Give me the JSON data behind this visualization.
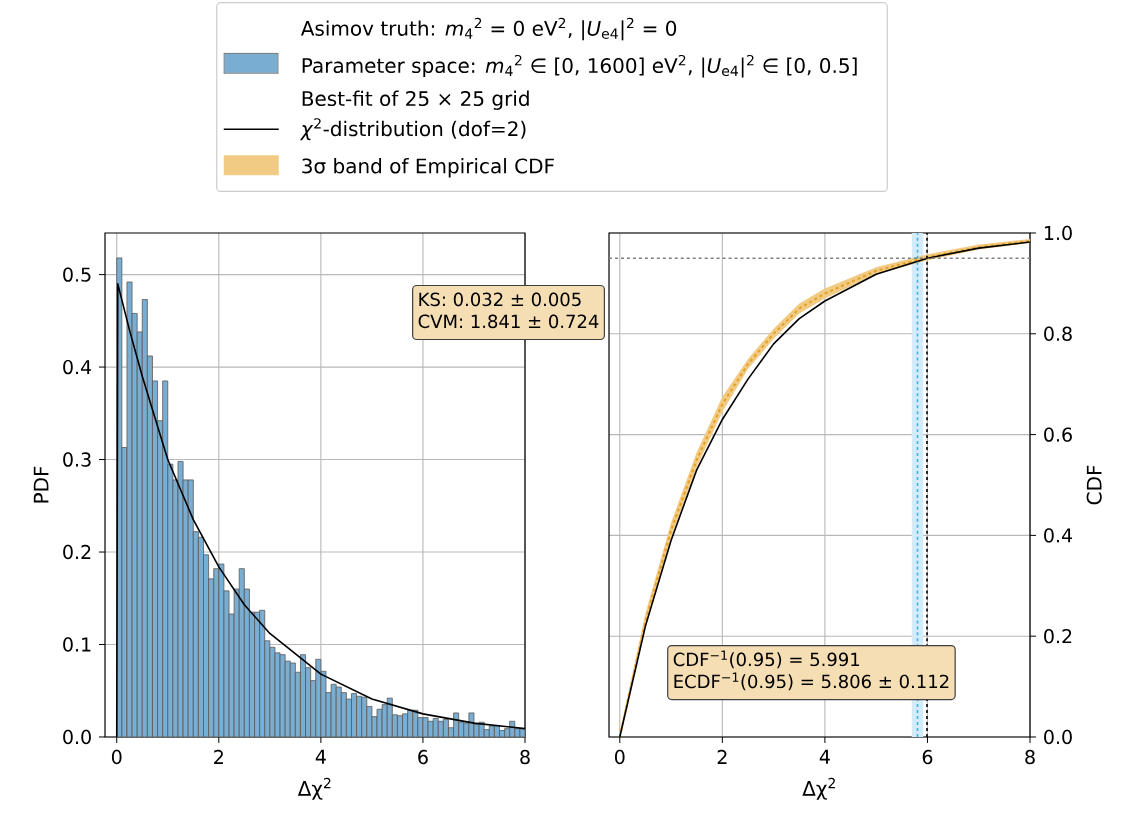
{
  "chart_data": [
    {
      "type": "histogram",
      "xlabel": "Δχ$^{2}$",
      "ylabel": "PDF",
      "legend_title": "Asimov truth: *m*$_{4}$$^{2}$ = 0 eV$^{2}$, |*U*$_{e4}$|$^{2}$ = 0",
      "legend": "top",
      "grid": true,
      "xlim": [
        -0.23,
        8
      ],
      "ylim": [
        0,
        0.545
      ],
      "xticks": [
        0,
        2,
        4,
        6,
        8
      ],
      "yticks": [
        {
          "value": 0,
          "label": "0.0"
        },
        0.1,
        0.2,
        0.3,
        0.4,
        0.5
      ],
      "bins": [
        0,
        0.1,
        0.2,
        0.3,
        0.4,
        0.5,
        0.6,
        0.7,
        0.8,
        0.9,
        1.0,
        1.1,
        1.2,
        1.3,
        1.4,
        1.5,
        1.6,
        1.7,
        1.8,
        1.9,
        2.0,
        2.1,
        2.2,
        2.3,
        2.4,
        2.5,
        2.6,
        2.7,
        2.8,
        2.9,
        3.0,
        3.1,
        3.2,
        3.3,
        3.4,
        3.5,
        3.6,
        3.7,
        3.8,
        3.9,
        4.0,
        4.1,
        4.2,
        4.3,
        4.4,
        4.5,
        4.6,
        4.7,
        4.8,
        4.9,
        5.0,
        5.1,
        5.2,
        5.3,
        5.4,
        5.5,
        5.6,
        5.7,
        5.8,
        5.9,
        6.0,
        6.1,
        6.2,
        6.3,
        6.4,
        6.5,
        6.6,
        6.7,
        6.8,
        6.9,
        7.0,
        7.1,
        7.2,
        7.3,
        7.4,
        7.5,
        7.6,
        7.7,
        7.8,
        7.9,
        8.0
      ],
      "series": [
        {
          "name": "Parameter space: *m*$_{4}$$^{2}$ ∈ [0, 1600] eV$^{2}$, |*U*$_{e4}$|$^{2}$ ∈ [0, 0.5] Best-fit of 25 × 25 grid",
          "color": "#79add2",
          "values": [
            0.518,
            0.313,
            0.492,
            0.458,
            0.438,
            0.473,
            0.412,
            0.385,
            0.342,
            0.385,
            0.295,
            0.278,
            0.298,
            0.278,
            0.278,
            0.222,
            0.216,
            0.197,
            0.171,
            0.182,
            0.187,
            0.158,
            0.133,
            0.16,
            0.182,
            0.16,
            0.135,
            0.135,
            0.137,
            0.104,
            0.097,
            0.091,
            0.089,
            0.082,
            0.08,
            0.07,
            0.089,
            0.075,
            0.061,
            0.084,
            0.071,
            0.048,
            0.057,
            0.054,
            0.048,
            0.041,
            0.047,
            0.044,
            0.043,
            0.033,
            0.022,
            0.03,
            0.035,
            0.042,
            0.024,
            0.023,
            0.025,
            0.029,
            0.029,
            0.021,
            0.021,
            0.017,
            0.02,
            0.017,
            0.019,
            0.01,
            0.026,
            0.016,
            0.015,
            0.026,
            0.014,
            0.016,
            0.008,
            0.012,
            0.012,
            0.007,
            0.009,
            0.017,
            0.009,
            0.009
          ]
        },
        {
          "type": "line",
          "name": "*χ*$^{2}$-distribution (dof=2)",
          "color": "#000000",
          "x": [
            0,
            0.02,
            0.25,
            0.5,
            0.75,
            1,
            1.5,
            2,
            2.5,
            3,
            4,
            5,
            6,
            7,
            8
          ],
          "values": [
            0,
            0.49,
            0.44,
            0.39,
            0.345,
            0.3,
            0.235,
            0.184,
            0.143,
            0.112,
            0.068,
            0.041,
            0.025,
            0.015,
            0.009
          ]
        }
      ],
      "annotations": [
        "KS: 0.032 ± 0.005",
        "CVM: 1.841 ± 0.724"
      ]
    },
    {
      "type": "line",
      "xlabel": "Δχ$^{2}$",
      "y2label": "CDF",
      "grid": true,
      "xlim": [
        -0.21,
        8
      ],
      "y2lim": [
        0,
        1
      ],
      "xticks": [
        0,
        2,
        4,
        6,
        8
      ],
      "y2ticks": [
        {
          "value": 0,
          "label": "0.0"
        },
        0.2,
        0.4,
        0.6,
        0.8,
        {
          "value": 1,
          "label": "1.0"
        }
      ],
      "series": [
        {
          "axis": "y2",
          "name": "3σ band of Empirical CDF",
          "color": "#e5a020",
          "line_style": "dashed",
          "x": [
            0,
            0.5,
            1,
            1.5,
            2,
            2.5,
            3,
            3.5,
            4,
            5,
            6,
            7,
            8
          ],
          "values": [
            0,
            0.23,
            0.41,
            0.55,
            0.66,
            0.74,
            0.8,
            0.85,
            0.88,
            0.925,
            0.952,
            0.972,
            0.984
          ],
          "lower": [
            0,
            0.215,
            0.395,
            0.535,
            0.645,
            0.73,
            0.79,
            0.84,
            0.87,
            0.918,
            0.946,
            0.967,
            0.98
          ],
          "upper": [
            0.01,
            0.245,
            0.425,
            0.565,
            0.675,
            0.75,
            0.81,
            0.86,
            0.89,
            0.932,
            0.958,
            0.977,
            0.988
          ]
        },
        {
          "axis": "y2",
          "color": "#000000",
          "x": [
            0,
            0.5,
            1,
            1.5,
            2,
            2.5,
            3,
            3.5,
            4,
            5,
            6,
            7,
            8
          ],
          "values": [
            0,
            0.22,
            0.39,
            0.53,
            0.63,
            0.71,
            0.78,
            0.83,
            0.865,
            0.918,
            0.95,
            0.97,
            0.982
          ]
        }
      ],
      "bands": [
        {
          "axis": "x",
          "from": 5.694,
          "to": 5.918,
          "color": "#d4ecf9"
        }
      ],
      "ref_lines": [
        {
          "axis": "y2",
          "value": 0.95,
          "color": "#808080",
          "line_style": "dashed"
        },
        {
          "axis": "x",
          "value": 5.806,
          "color": "#3fb0ea",
          "line_style": "dashed"
        },
        {
          "axis": "x",
          "value": 5.991,
          "color": "#000000",
          "line_style": "dashed"
        }
      ],
      "annotations": [
        "CDF$^{−1}$(0.95) = 5.991",
        "ECDF$^{−1}$(0.95) = 5.806 ± 0.112"
      ]
    }
  ]
}
